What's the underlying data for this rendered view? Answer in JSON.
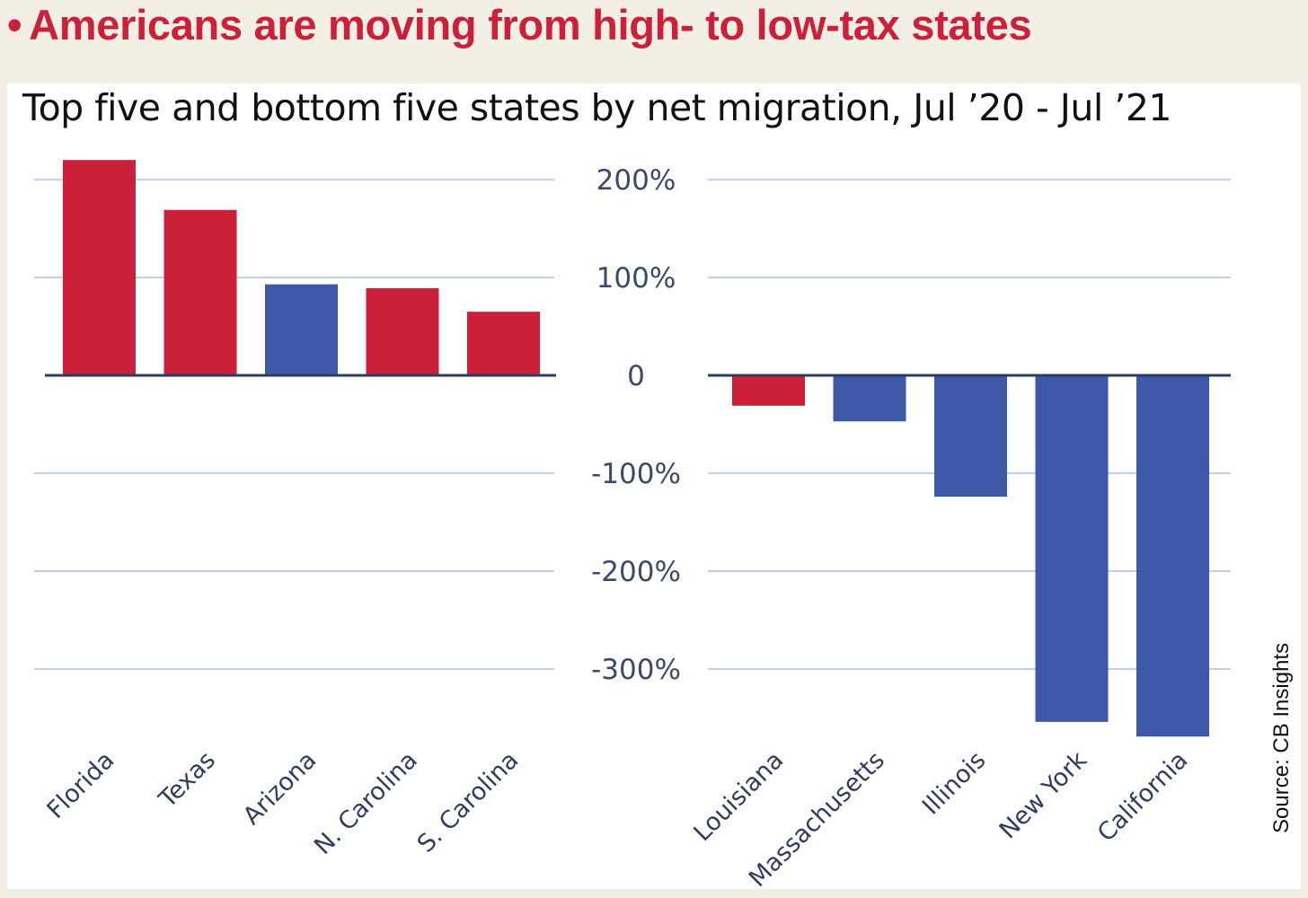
{
  "headline": {
    "bullet": "•",
    "text": "Americans are moving from high- to low-tax states"
  },
  "source": "Source: CB Insights",
  "colors": {
    "red": "#cc1f39",
    "blue": "#3e58a8",
    "grid": "#c4d0e6",
    "axis": "#2c3c5c",
    "background": "#f4efe4"
  },
  "chart_data": {
    "type": "bar",
    "title": "Top five and bottom five states by net migration, Jul ’20 - Jul ’21",
    "xlabel": "",
    "ylabel": "",
    "ylim": [
      -370,
      225
    ],
    "y_ticks": [
      {
        "value": 200,
        "label": "200%"
      },
      {
        "value": 100,
        "label": "100%"
      },
      {
        "value": 0,
        "label": "0"
      },
      {
        "value": -100,
        "label": "-100%"
      },
      {
        "value": -200,
        "label": "-200%"
      },
      {
        "value": -300,
        "label": "-300%"
      }
    ],
    "grid": true,
    "panels": [
      {
        "group": "top five",
        "categories": [
          "Florida",
          "Texas",
          "Arizona",
          "N. Carolina",
          "S. Carolina"
        ],
        "values": [
          220,
          169,
          93,
          89,
          65
        ],
        "bar_colors": [
          "red",
          "red",
          "blue",
          "red",
          "red"
        ]
      },
      {
        "group": "bottom five",
        "categories": [
          "Louisiana",
          "Massachusetts",
          "Illinois",
          "New York",
          "California"
        ],
        "values": [
          -31,
          -47,
          -124,
          -354,
          -369
        ],
        "bar_colors": [
          "red",
          "blue",
          "blue",
          "blue",
          "blue"
        ]
      }
    ]
  }
}
